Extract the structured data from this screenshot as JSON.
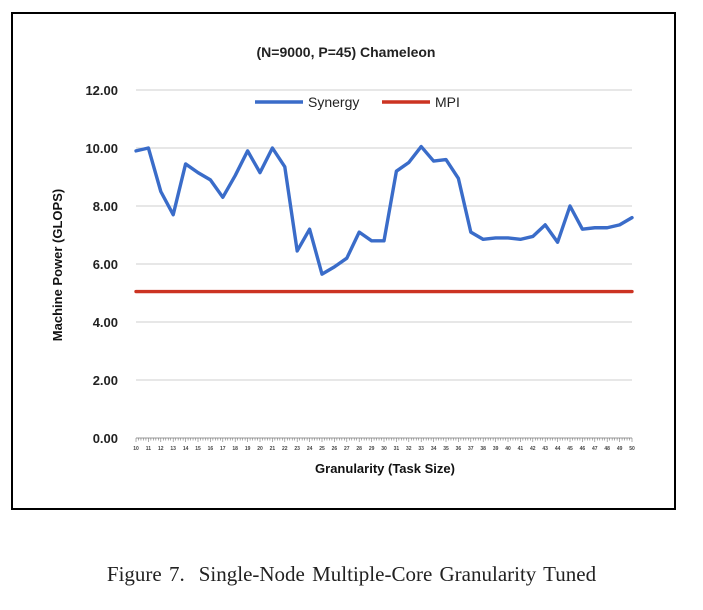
{
  "chart_data": {
    "type": "line",
    "title": "(N=9000, P=45) Chameleon",
    "xlabel": "Granularity (Task Size)",
    "ylabel": "Machine Power (GLOPS)",
    "x": [
      10,
      11,
      12,
      13,
      14,
      15,
      16,
      17,
      18,
      19,
      20,
      21,
      22,
      23,
      24,
      25,
      26,
      27,
      28,
      29,
      30,
      31,
      32,
      33,
      34,
      35,
      36,
      37,
      38,
      39,
      40,
      41,
      42,
      43,
      44,
      45,
      46,
      47,
      48,
      49,
      50
    ],
    "ylim": [
      0,
      12
    ],
    "yticks": [
      "0.00",
      "2.00",
      "4.00",
      "6.00",
      "8.00",
      "10.00",
      "12.00"
    ],
    "grid": true,
    "legend_position": "top-center",
    "series": [
      {
        "name": "Synergy",
        "color": "#3a6cc9",
        "values": [
          9.9,
          10.0,
          8.5,
          7.7,
          9.45,
          9.15,
          8.9,
          8.3,
          9.05,
          9.9,
          9.15,
          10.0,
          9.35,
          6.45,
          7.2,
          5.65,
          5.9,
          6.2,
          7.1,
          6.8,
          6.8,
          9.2,
          9.5,
          10.05,
          9.55,
          9.6,
          8.95,
          7.1,
          6.85,
          6.9,
          6.9,
          6.85,
          6.95,
          7.35,
          6.75,
          8.0,
          7.2,
          7.25,
          7.25,
          7.35,
          7.6
        ]
      },
      {
        "name": "MPI",
        "color": "#cc3322",
        "values": [
          5.05,
          5.05,
          5.05,
          5.05,
          5.05,
          5.05,
          5.05,
          5.05,
          5.05,
          5.05,
          5.05,
          5.05,
          5.05,
          5.05,
          5.05,
          5.05,
          5.05,
          5.05,
          5.05,
          5.05,
          5.05,
          5.05,
          5.05,
          5.05,
          5.05,
          5.05,
          5.05,
          5.05,
          5.05,
          5.05,
          5.05,
          5.05,
          5.05,
          5.05,
          5.05,
          5.05,
          5.05,
          5.05,
          5.05,
          5.05,
          5.05
        ]
      }
    ]
  },
  "caption": {
    "label": "Figure 7.",
    "text": "Single-Node Multiple-Core Granularity Tuned"
  }
}
